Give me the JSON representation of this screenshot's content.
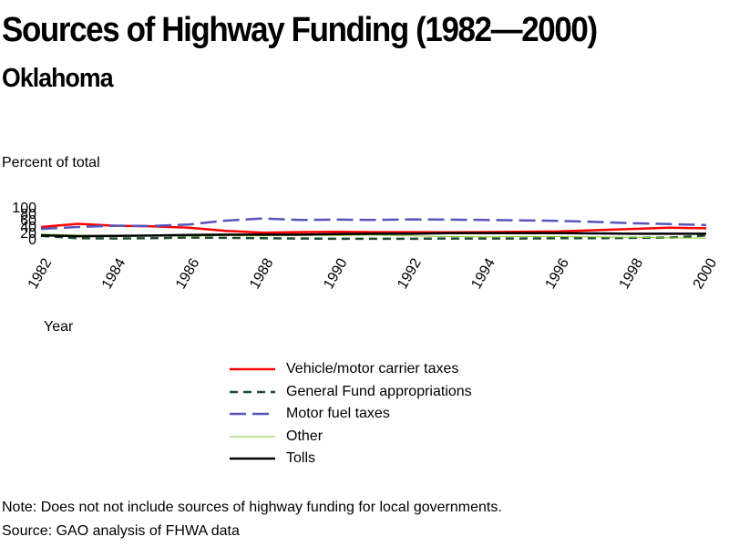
{
  "title": "Sources of Highway Funding (1982—2000)",
  "subtitle": "Oklahoma",
  "y_axis_label": "Percent of total",
  "x_axis_label": "Year",
  "note": "Note: Does not not include sources of highway funding for local governments.",
  "source": "Source: GAO analysis of FHWA data",
  "chart_data": {
    "type": "line",
    "title": "Sources of Highway Funding (1982—2000)",
    "subtitle": "Oklahoma",
    "xlabel": "Year",
    "ylabel": "Percent of total",
    "x": [
      1982,
      1983,
      1984,
      1985,
      1986,
      1987,
      1988,
      1989,
      1990,
      1991,
      1992,
      1993,
      1994,
      1995,
      1996,
      1997,
      1998,
      1999,
      2000
    ],
    "x_tick_labels": [
      "1982",
      "1984",
      "1986",
      "1988",
      "1990",
      "1992",
      "1994",
      "1996",
      "1998",
      "2000"
    ],
    "y_tick_labels": [
      "100",
      "80",
      "60",
      "40",
      "20",
      "0"
    ],
    "ylim": [
      0,
      100
    ],
    "grid": false,
    "legend_position": "bottom",
    "series": [
      {
        "name": "Vehicle/motor carrier taxes",
        "color": "#ff0000",
        "style": "solid",
        "values": [
          40,
          50,
          44,
          42,
          38,
          28,
          22,
          24,
          25,
          24,
          24,
          23,
          24,
          25,
          26,
          30,
          34,
          38,
          36
        ]
      },
      {
        "name": "General Fund appropriations",
        "color": "#1f4d2e",
        "style": "dashed",
        "values": [
          12,
          5,
          4,
          5,
          7,
          6,
          5,
          4,
          3,
          3,
          3,
          4,
          4,
          4,
          5,
          5,
          6,
          7,
          13
        ]
      },
      {
        "name": "Motor fuel taxes",
        "color": "#5555bb",
        "style": "dashed",
        "values": [
          34,
          40,
          44,
          43,
          48,
          60,
          67,
          62,
          63,
          62,
          64,
          63,
          62,
          61,
          59,
          56,
          52,
          49,
          46
        ]
      },
      {
        "name": "Other",
        "color": "#88cc33",
        "style": "solid",
        "values": [
          18,
          15,
          13,
          14,
          11,
          13,
          12,
          14,
          13,
          15,
          12,
          10,
          9,
          10,
          10,
          9,
          8,
          6,
          5
        ]
      },
      {
        "name": "Tolls",
        "color": "#000000",
        "style": "solid",
        "values": [
          14,
          11,
          12,
          13,
          15,
          16,
          16,
          16,
          18,
          19,
          19,
          21,
          21,
          21,
          21,
          20,
          19,
          19,
          19
        ]
      }
    ]
  }
}
